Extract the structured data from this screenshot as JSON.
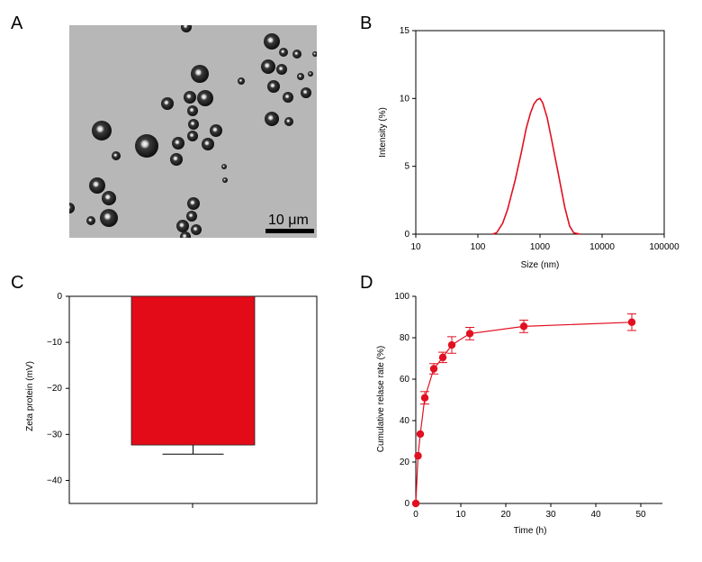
{
  "panels": {
    "a": {
      "letter": "A",
      "scale_bar_text": "10 μm"
    },
    "b": {
      "letter": "B"
    },
    "c": {
      "letter": "C"
    },
    "d": {
      "letter": "D"
    }
  },
  "colors": {
    "series": "#e11020",
    "bar": "#e30b18",
    "image_bg": "#b7b7b7"
  },
  "chart_data": [
    {
      "panel": "B",
      "type": "line",
      "xlabel": "Size (nm)",
      "ylabel": "Intensity (%)",
      "x_scale": "log",
      "xlim": [
        10,
        100000
      ],
      "ylim": [
        0,
        15
      ],
      "x_ticks": [
        "10",
        "100",
        "1000",
        "10000",
        "100000"
      ],
      "y_ticks": [
        "0",
        "5",
        "10",
        "15"
      ],
      "x": [
        170,
        200,
        250,
        300,
        400,
        500,
        600,
        700,
        800,
        900,
        1000,
        1100,
        1300,
        1500,
        2000,
        2500,
        3000,
        3500,
        4500
      ],
      "y": [
        0,
        0.1,
        0.8,
        1.8,
        4.0,
        6.0,
        7.8,
        8.9,
        9.6,
        9.9,
        10.0,
        9.7,
        8.6,
        7.2,
        4.3,
        2.0,
        0.6,
        0.1,
        0
      ]
    },
    {
      "panel": "C",
      "type": "bar",
      "categories": [
        ""
      ],
      "values": [
        -32.3
      ],
      "errors": [
        2.0
      ],
      "ylabel": "Zeta protein (mV)",
      "ylim": [
        -45,
        0
      ],
      "y_ticks": [
        "0",
        "-10",
        "-20",
        "-30",
        "-40"
      ]
    },
    {
      "panel": "D",
      "type": "line",
      "xlabel": "Time (h)",
      "ylabel": "Cumulative relase rate (%)",
      "xlim": [
        0,
        50
      ],
      "ylim": [
        0,
        100
      ],
      "x_ticks": [
        "0",
        "10",
        "20",
        "30",
        "40",
        "50"
      ],
      "y_ticks": [
        "0",
        "20",
        "40",
        "60",
        "80",
        "100"
      ],
      "x": [
        0,
        0.5,
        1,
        2,
        4,
        6,
        8,
        12,
        24,
        48
      ],
      "y": [
        0,
        23,
        33.5,
        51,
        65,
        70.5,
        76.5,
        82,
        85.5,
        87.5
      ],
      "errors": [
        0,
        0,
        0,
        3,
        2.5,
        2.5,
        4,
        3,
        3,
        4
      ]
    }
  ]
}
